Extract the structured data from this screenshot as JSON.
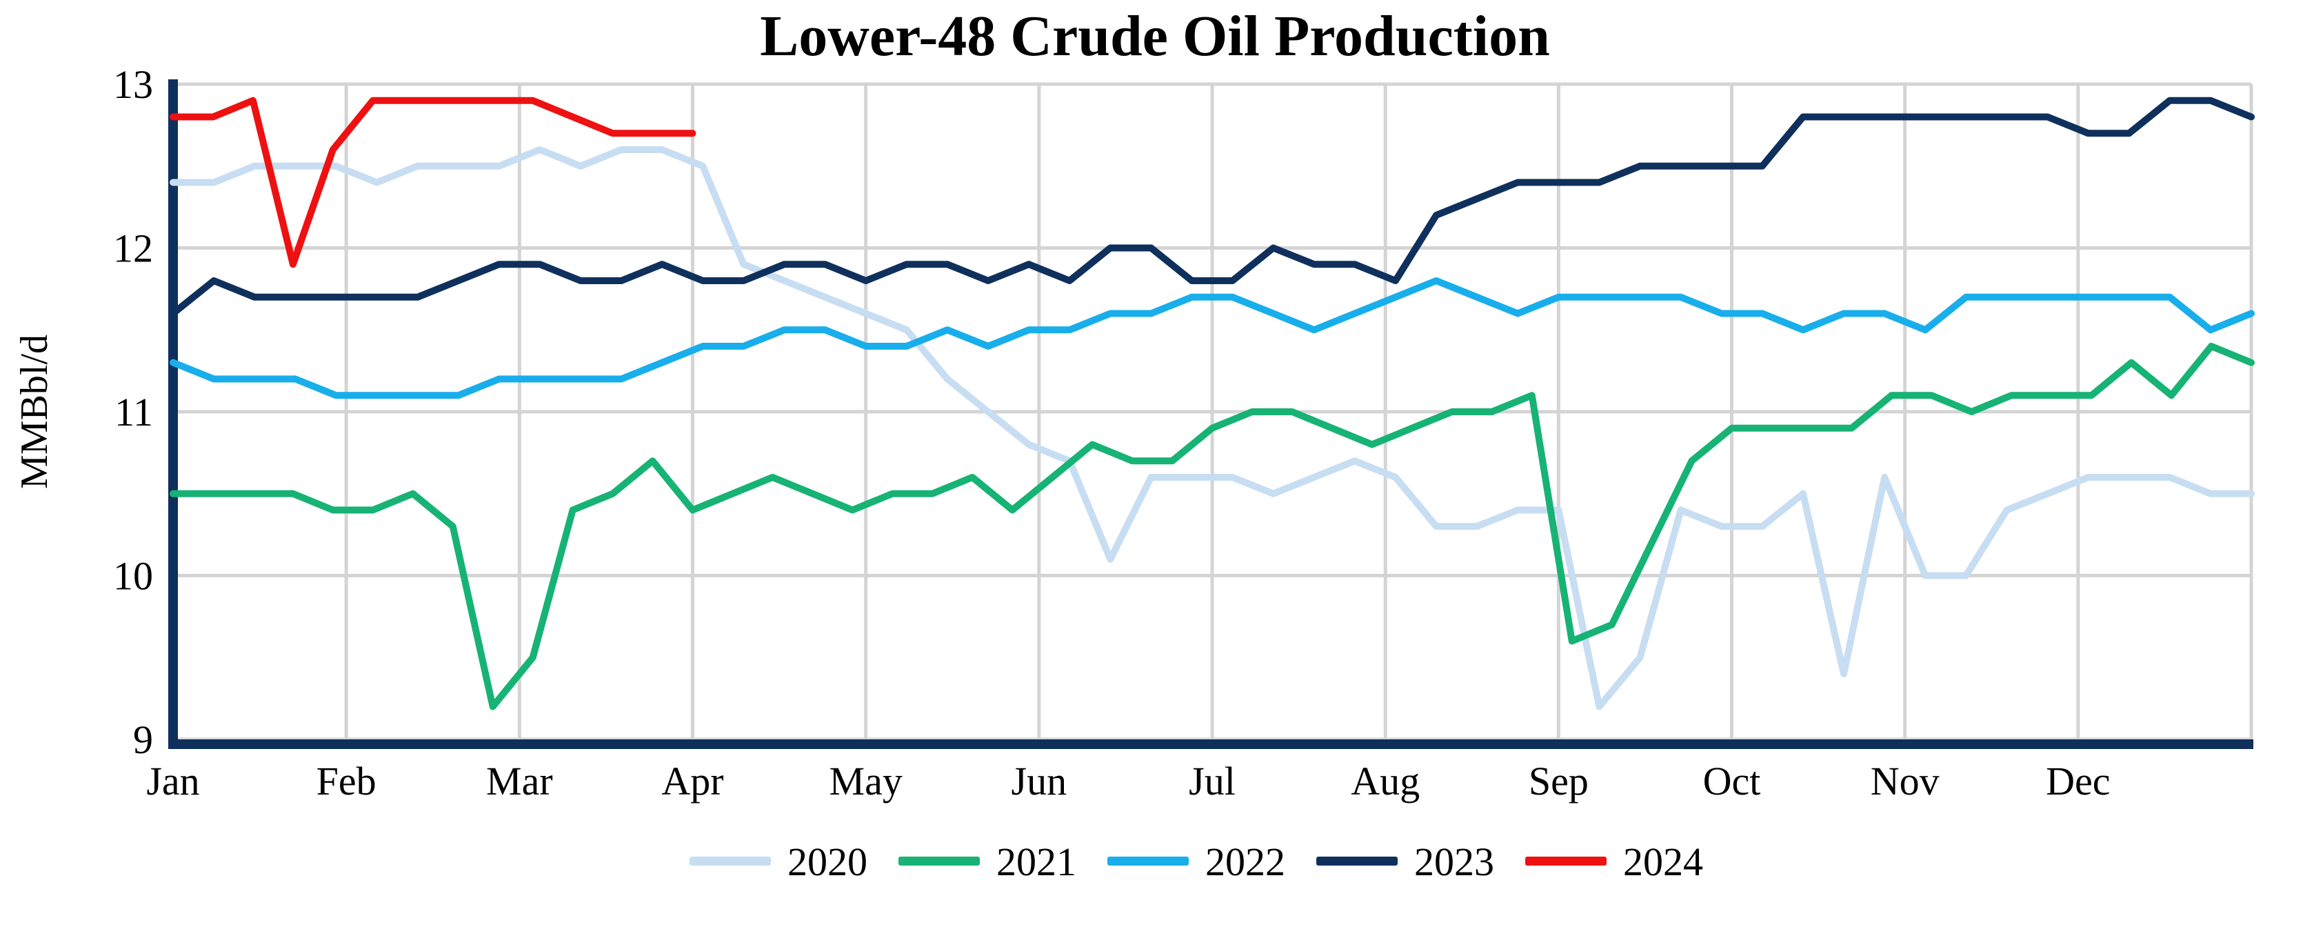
{
  "title": "Lower-48 Crude Oil Production",
  "y_axis": {
    "label": "MMBbl/d",
    "ticks": [
      13,
      12,
      11,
      10,
      9
    ],
    "min": 9,
    "max": 13
  },
  "x_axis": {
    "months": [
      "Jan",
      "Feb",
      "Mar",
      "Apr",
      "May",
      "Jun",
      "Jul",
      "Aug",
      "Sep",
      "Oct",
      "Nov",
      "Dec"
    ]
  },
  "legend": {
    "entries": [
      "2020",
      "2021",
      "2022",
      "2023",
      "2024"
    ]
  },
  "colors": {
    "s2020": "#c7ddf2",
    "s2021": "#16b375",
    "s2022": "#18aeec",
    "s2023": "#0f305c",
    "s2024": "#ee1111",
    "grid": "#d4d4d4",
    "axis": "#0f305c"
  },
  "chart_data": {
    "type": "line",
    "title": "Lower-48 Crude Oil Production",
    "xlabel": "",
    "ylabel": "MMBbl/d",
    "ylim": [
      9,
      13
    ],
    "grid": true,
    "legend_position": "bottom",
    "x_unit": "week of year (Jan-Dec)",
    "series": [
      {
        "name": "2020",
        "color": "#c7ddf2",
        "weeks_in_year": 52,
        "values": [
          12.4,
          12.4,
          12.5,
          12.5,
          12.5,
          12.4,
          12.5,
          12.5,
          12.5,
          12.6,
          12.5,
          12.6,
          12.6,
          12.5,
          11.9,
          11.8,
          11.7,
          11.6,
          11.5,
          11.2,
          11.0,
          10.8,
          10.7,
          10.1,
          10.6,
          10.6,
          10.6,
          10.5,
          10.6,
          10.7,
          10.6,
          10.3,
          10.3,
          10.4,
          10.4,
          9.2,
          9.5,
          10.4,
          10.3,
          10.3,
          10.5,
          9.4,
          10.6,
          10.0,
          10.0,
          10.4,
          10.5,
          10.6,
          10.6,
          10.6,
          10.5,
          10.5
        ]
      },
      {
        "name": "2021",
        "color": "#16b375",
        "weeks_in_year": 53,
        "values": [
          10.5,
          10.5,
          10.5,
          10.5,
          10.4,
          10.4,
          10.5,
          10.3,
          9.2,
          9.5,
          10.4,
          10.5,
          10.7,
          10.4,
          10.5,
          10.6,
          10.5,
          10.4,
          10.5,
          10.5,
          10.6,
          10.4,
          10.6,
          10.8,
          10.7,
          10.7,
          10.9,
          11.0,
          11.0,
          10.9,
          10.8,
          10.9,
          11.0,
          11.0,
          11.1,
          9.6,
          9.7,
          10.2,
          10.7,
          10.9,
          10.9,
          10.9,
          10.9,
          11.1,
          11.1,
          11.0,
          11.1,
          11.1,
          11.1,
          11.3,
          11.1,
          11.4,
          11.3
        ]
      },
      {
        "name": "2022",
        "color": "#18aeec",
        "weeks_in_year": 52,
        "values": [
          11.3,
          11.2,
          11.2,
          11.2,
          11.1,
          11.1,
          11.1,
          11.1,
          11.2,
          11.2,
          11.2,
          11.2,
          11.3,
          11.4,
          11.4,
          11.5,
          11.5,
          11.4,
          11.4,
          11.5,
          11.4,
          11.5,
          11.5,
          11.6,
          11.6,
          11.7,
          11.7,
          11.6,
          11.5,
          11.6,
          11.7,
          11.8,
          11.7,
          11.6,
          11.7,
          11.7,
          11.7,
          11.7,
          11.6,
          11.6,
          11.5,
          11.6,
          11.6,
          11.5,
          11.7,
          11.7,
          11.7,
          11.7,
          11.7,
          11.7,
          11.5,
          11.6
        ]
      },
      {
        "name": "2023",
        "color": "#0f305c",
        "weeks_in_year": 52,
        "values": [
          11.6,
          11.8,
          11.7,
          11.7,
          11.7,
          11.7,
          11.7,
          11.8,
          11.9,
          11.9,
          11.8,
          11.8,
          11.9,
          11.8,
          11.8,
          11.9,
          11.9,
          11.8,
          11.9,
          11.9,
          11.8,
          11.9,
          11.8,
          12.0,
          12.0,
          11.8,
          11.8,
          12.0,
          11.9,
          11.9,
          11.8,
          12.2,
          12.3,
          12.4,
          12.4,
          12.4,
          12.5,
          12.5,
          12.5,
          12.5,
          12.8,
          12.8,
          12.8,
          12.8,
          12.8,
          12.8,
          12.8,
          12.7,
          12.7,
          12.9,
          12.9,
          12.8
        ]
      },
      {
        "name": "2024",
        "color": "#ee1111",
        "weeks_in_year": 53,
        "values": [
          12.8,
          12.8,
          12.9,
          11.9,
          12.6,
          12.9,
          12.9,
          12.9,
          12.9,
          12.9,
          12.8,
          12.7,
          12.7,
          12.7
        ]
      }
    ]
  }
}
